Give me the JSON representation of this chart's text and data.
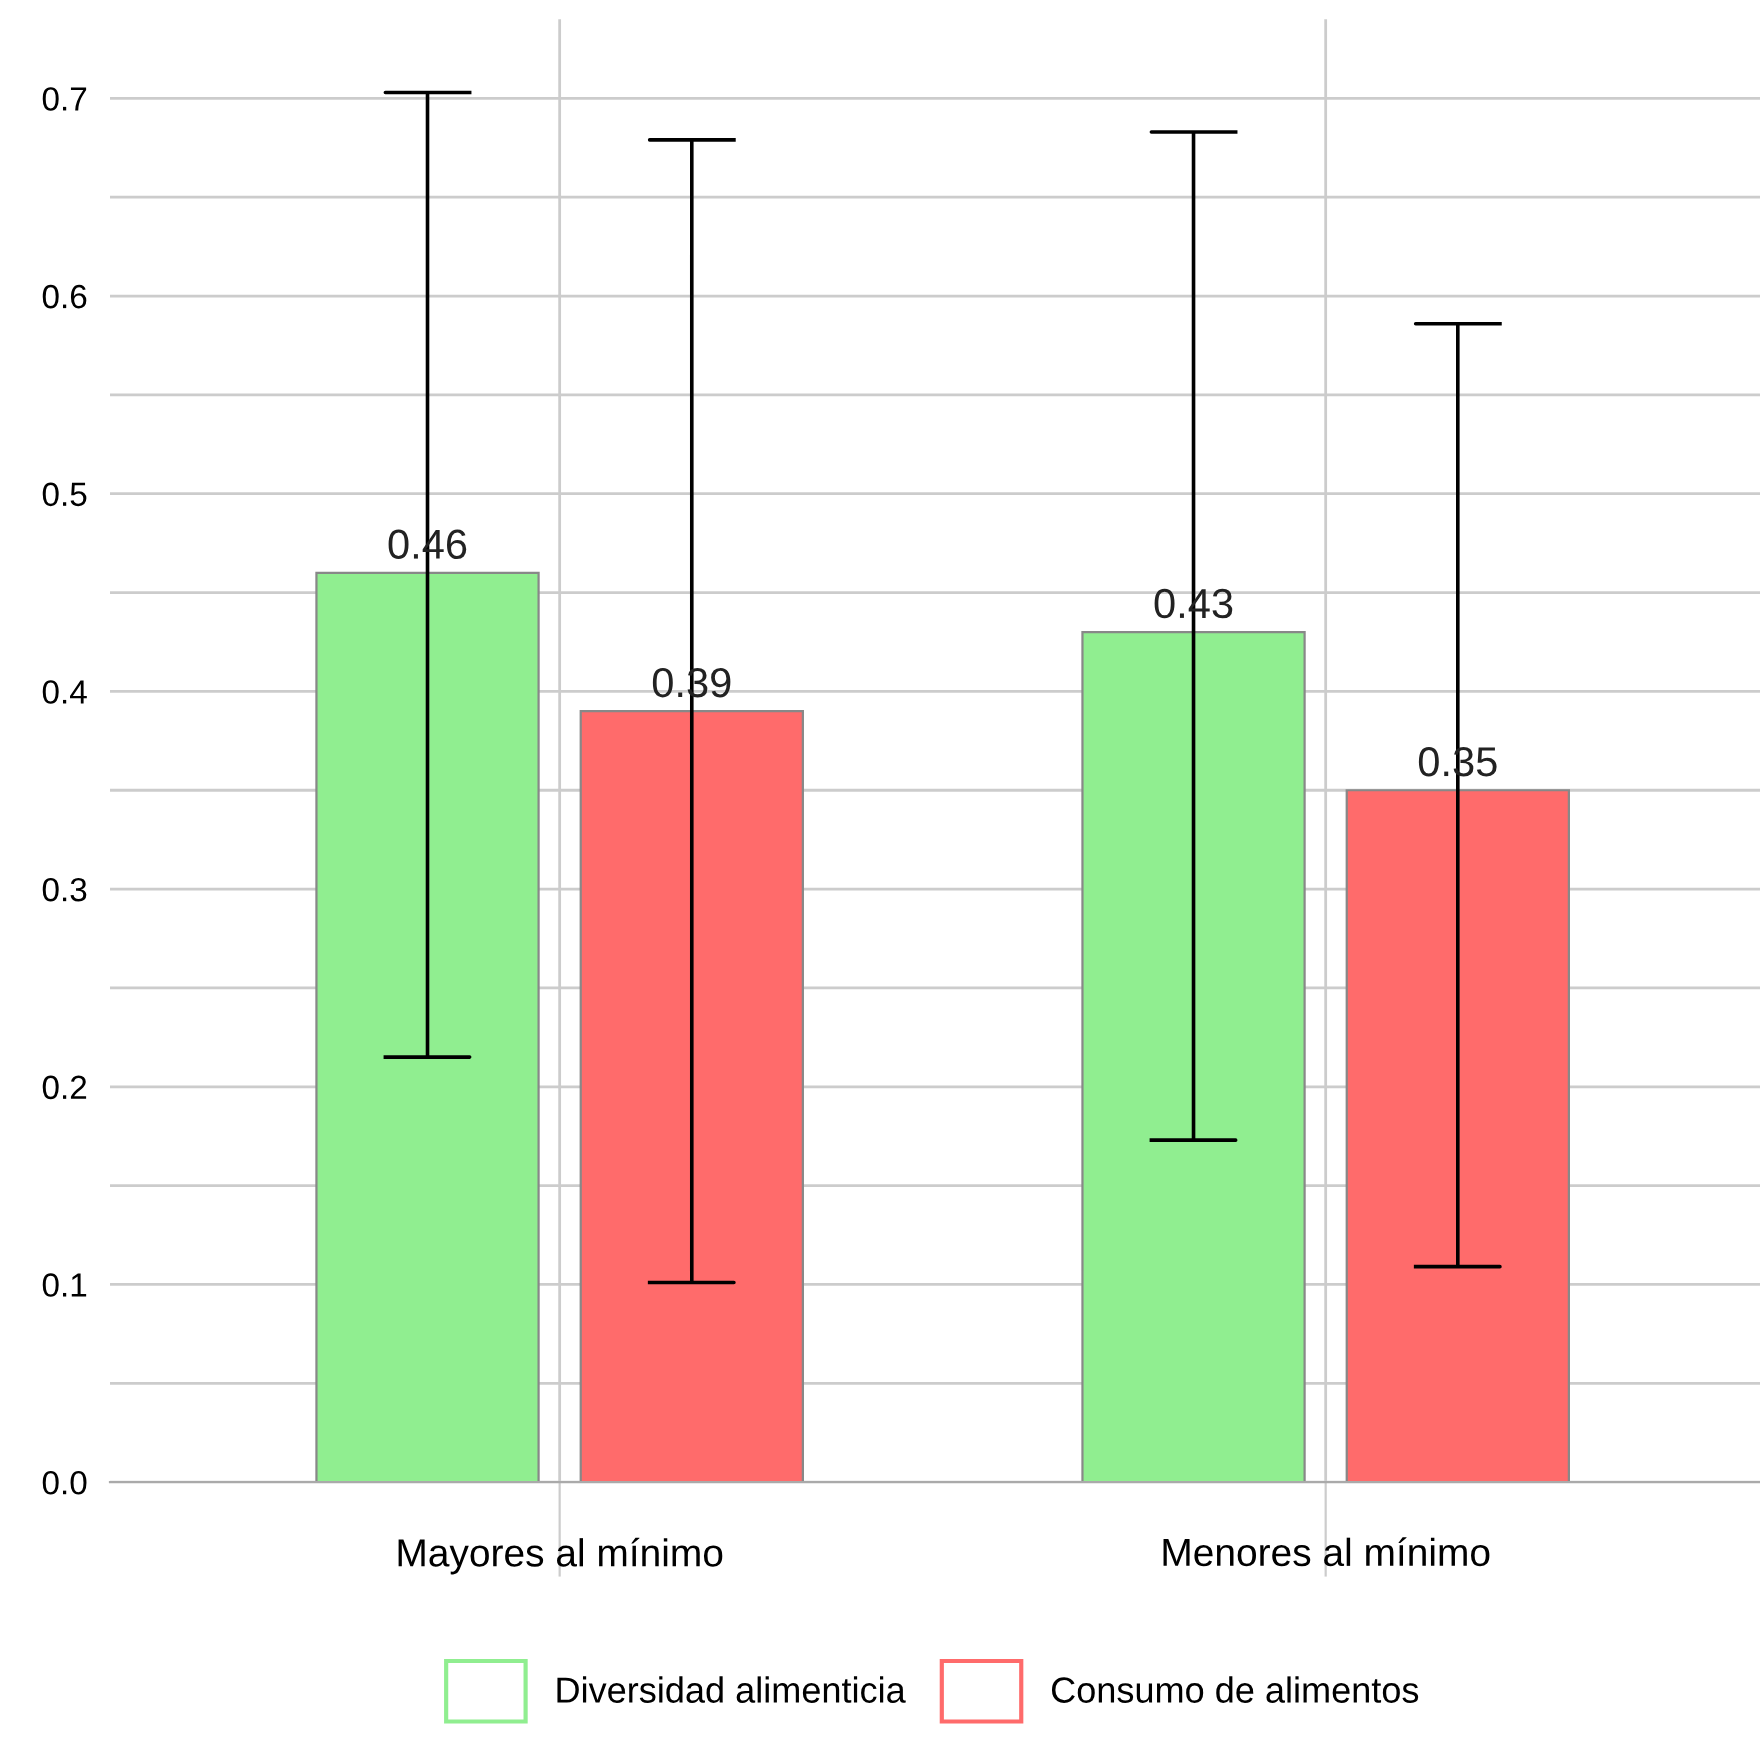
{
  "chart_data": {
    "type": "bar",
    "categories": [
      "Mayores al mínimo",
      "Menores al mínimo"
    ],
    "series": [
      {
        "name": "Diversidad alimenticia",
        "color": "#90ee90",
        "values": [
          0.46,
          0.43
        ],
        "errors": [
          [
            0.215,
            0.703
          ],
          [
            0.173,
            0.683
          ]
        ]
      },
      {
        "name": "Consumo de alimentos",
        "color": "#ff6b6b",
        "values": [
          0.39,
          0.35
        ],
        "errors": [
          [
            0.101,
            0.679
          ],
          [
            0.109,
            0.586
          ]
        ]
      }
    ],
    "ylim": [
      0,
      0.74
    ],
    "yticks": [
      {
        "value": 0,
        "label": "0.0"
      },
      {
        "value": 0.05,
        "label": null
      },
      0.1,
      {
        "value": 0.15,
        "label": null
      },
      0.2,
      {
        "value": 0.25,
        "label": null
      },
      0.3,
      {
        "value": 0.35,
        "label": null
      },
      0.4,
      {
        "value": 0.45,
        "label": null
      },
      0.5,
      {
        "value": 0.55,
        "label": null
      },
      0.6,
      {
        "value": 0.65,
        "label": null
      },
      0.7
    ],
    "grid": true,
    "legend": "bottom",
    "data_labels": true
  }
}
